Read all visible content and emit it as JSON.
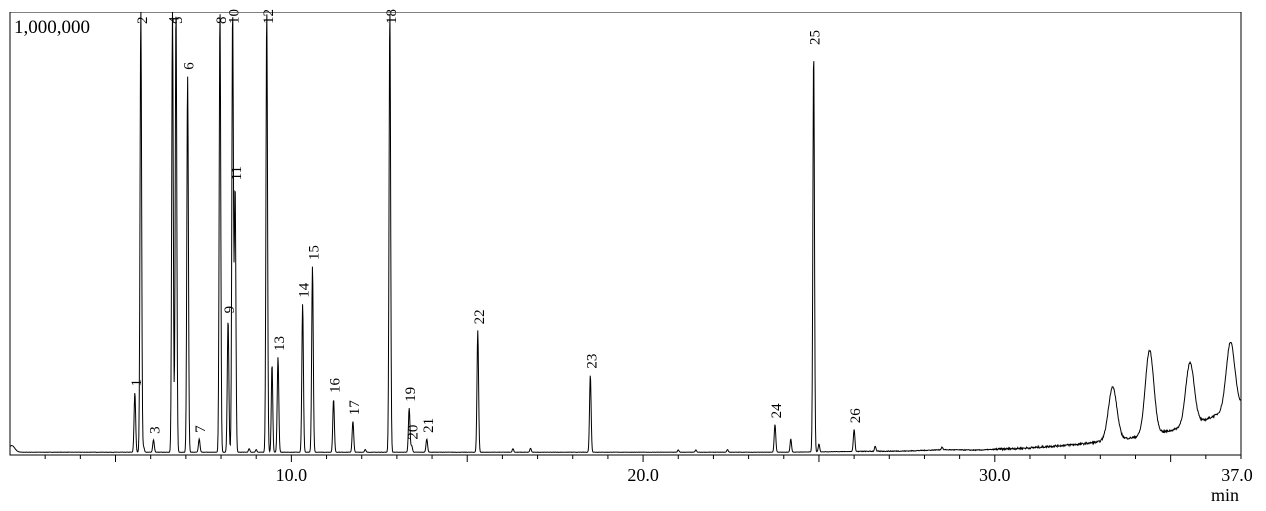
{
  "chart_data": {
    "type": "line",
    "title": "",
    "xlabel": "",
    "ylabel": "",
    "x_unit": "min",
    "y_top_label": "1,000,000",
    "xlim": [
      2.0,
      37.0
    ],
    "x_ticks": [
      10.0,
      20.0,
      30.0,
      37.0
    ],
    "x_tick_labels": [
      "10.0",
      "20.0",
      "30.0",
      "37.0"
    ],
    "ylim": [
      0,
      1000000
    ],
    "grid": false,
    "baseline": 6300,
    "baseline_drift": [
      [
        2.0,
        6300
      ],
      [
        24.0,
        6300
      ],
      [
        26.0,
        8000
      ],
      [
        27.5,
        9000
      ],
      [
        28.5,
        12000
      ],
      [
        29.5,
        11000
      ],
      [
        31.0,
        16000
      ],
      [
        32.5,
        25000
      ],
      [
        34.0,
        40000
      ],
      [
        35.0,
        55000
      ],
      [
        36.0,
        80000
      ],
      [
        37.0,
        115000
      ]
    ],
    "peaks": [
      {
        "label": "1",
        "rt": 5.55,
        "height": 135000
      },
      {
        "label": "2",
        "rt": 5.72,
        "height": 1000000
      },
      {
        "label": "3",
        "rt": 6.08,
        "height": 28000
      },
      {
        "label": "4",
        "rt": 6.62,
        "height": 1000000
      },
      {
        "label": "5",
        "rt": 6.72,
        "height": 1000000
      },
      {
        "label": "6",
        "rt": 7.05,
        "height": 850000
      },
      {
        "label": "7",
        "rt": 7.38,
        "height": 30000
      },
      {
        "label": "8",
        "rt": 7.97,
        "height": 1000000
      },
      {
        "label": "9",
        "rt": 8.2,
        "height": 300000
      },
      {
        "label": "10",
        "rt": 8.33,
        "height": 1000000
      },
      {
        "label": "11",
        "rt": 8.4,
        "height": 600000
      },
      {
        "label": "12",
        "rt": 9.3,
        "height": 1000000
      },
      {
        "label": "13",
        "rt": 9.62,
        "height": 215000
      },
      {
        "label": "14",
        "rt": 10.32,
        "height": 335000
      },
      {
        "label": "15",
        "rt": 10.6,
        "height": 420000
      },
      {
        "label": "16",
        "rt": 11.2,
        "height": 120000
      },
      {
        "label": "17",
        "rt": 11.75,
        "height": 70000
      },
      {
        "label": "18",
        "rt": 12.8,
        "height": 1000000
      },
      {
        "label": "19",
        "rt": 13.35,
        "height": 100000
      },
      {
        "label": "20",
        "rt": 13.42,
        "height": 15000
      },
      {
        "label": "21",
        "rt": 13.85,
        "height": 30000
      },
      {
        "label": "22",
        "rt": 15.3,
        "height": 275000
      },
      {
        "label": "23",
        "rt": 18.5,
        "height": 175000
      },
      {
        "label": "24",
        "rt": 23.75,
        "height": 63000
      },
      {
        "label": "25",
        "rt": 24.85,
        "height": 905000
      },
      {
        "label": "26",
        "rt": 26.0,
        "height": 50000
      }
    ],
    "minor_peaks": [
      {
        "rt": 5.8,
        "height": 12000
      },
      {
        "rt": 8.8,
        "height": 8000
      },
      {
        "rt": 9.0,
        "height": 6000
      },
      {
        "rt": 9.45,
        "height": 200000
      },
      {
        "rt": 12.1,
        "height": 6000
      },
      {
        "rt": 16.3,
        "height": 8000
      },
      {
        "rt": 16.8,
        "height": 9000
      },
      {
        "rt": 21.0,
        "height": 5000
      },
      {
        "rt": 21.5,
        "height": 5000
      },
      {
        "rt": 22.4,
        "height": 6000
      },
      {
        "rt": 24.2,
        "height": 30000
      },
      {
        "rt": 25.0,
        "height": 18000
      },
      {
        "rt": 26.6,
        "height": 12000
      },
      {
        "rt": 28.5,
        "height": 6000
      },
      {
        "rt": 33.35,
        "height": 120000
      },
      {
        "rt": 34.4,
        "height": 190000
      },
      {
        "rt": 35.55,
        "height": 140000
      },
      {
        "rt": 36.7,
        "height": 150000
      }
    ]
  }
}
